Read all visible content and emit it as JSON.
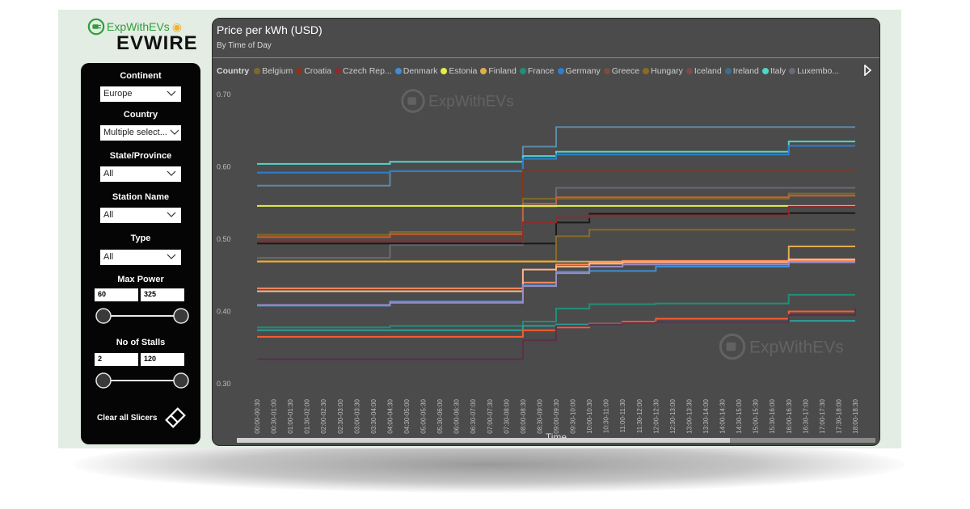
{
  "brand": {
    "name": "ExpWithEVs",
    "product": "EVWIRE",
    "icon": "plug-icon",
    "accent": "#2e9e3a",
    "hand_icon": "handshake-icon"
  },
  "slicers": {
    "continent": {
      "label": "Continent",
      "value": "Europe"
    },
    "country": {
      "label": "Country",
      "value": "Multiple select..."
    },
    "state": {
      "label": "State/Province",
      "value": "All"
    },
    "station": {
      "label": "Station Name",
      "value": "All"
    },
    "type": {
      "label": "Type",
      "value": "All"
    },
    "max_power": {
      "label": "Max Power",
      "min": "60",
      "max": "325"
    },
    "stalls": {
      "label": "No of Stalls",
      "min": "2",
      "max": "120"
    },
    "clear_label": "Clear all Slicers"
  },
  "panel": {
    "watermark": "ExpWithEVs"
  },
  "chart_data": {
    "type": "line",
    "title": "Price per kWh (USD)",
    "subtitle": "By Time of Day",
    "legend_title": "Country",
    "xlabel": "Time",
    "ylabel": "",
    "ylim": [
      0.3,
      0.7
    ],
    "yticks": [
      "0.70",
      "0.60",
      "0.50",
      "0.40",
      "0.30"
    ],
    "legend_position": "top",
    "categories": [
      "00:00-00:30",
      "00:30-01:00",
      "01:00-01:30",
      "01:30-02:00",
      "02:00-02:30",
      "02:30-03:00",
      "03:00-03:30",
      "03:30-04:00",
      "04:00-04:30",
      "04:30-05:00",
      "05:00-05:30",
      "05:30-06:00",
      "06:00-06:30",
      "06:30-07:00",
      "07:00-07:30",
      "07:30-08:00",
      "08:00-08:30",
      "08:30-09:00",
      "09:00-09:30",
      "09:30-10:00",
      "10:00-10:30",
      "10:30-11:00",
      "11:00-11:30",
      "11:30-12:00",
      "12:00-12:30",
      "12:30-13:00",
      "13:00-13:30",
      "13:30-14:00",
      "14:00-14:30",
      "14:30-15:00",
      "15:00-15:30",
      "15:30-16:00",
      "16:00-16:30",
      "16:30-17:00",
      "17:00-17:30",
      "17:30-18:00",
      "18:00-18:30"
    ],
    "legend": [
      {
        "name": "Belgium",
        "color": "#7d6a2a"
      },
      {
        "name": "Croatia",
        "color": "#8a3418"
      },
      {
        "name": "Czech Rep...",
        "color": "#8e2b2b"
      },
      {
        "name": "Denmark",
        "color": "#3f8fd8"
      },
      {
        "name": "Estonia",
        "color": "#e2ef4a"
      },
      {
        "name": "Finland",
        "color": "#e1ad4e"
      },
      {
        "name": "France",
        "color": "#1f8f78"
      },
      {
        "name": "Germany",
        "color": "#2c7fd0"
      },
      {
        "name": "Greece",
        "color": "#7a4d3a"
      },
      {
        "name": "Hungary",
        "color": "#8b6a24"
      },
      {
        "name": "Iceland",
        "color": "#7b4a4a"
      },
      {
        "name": "Ireland",
        "color": "#3a6f8c"
      },
      {
        "name": "Italy",
        "color": "#4fd6c8"
      },
      {
        "name": "Luxembo...",
        "color": "#6a6a78"
      }
    ],
    "series": [
      {
        "color": "#5d8aa8",
        "values": [
          0.574,
          0.574,
          0.574,
          0.574,
          0.574,
          0.574,
          0.574,
          0.574,
          0.594,
          0.594,
          0.594,
          0.594,
          0.594,
          0.594,
          0.594,
          0.594,
          0.628,
          0.628,
          0.655,
          0.655,
          0.655,
          0.655,
          0.655,
          0.655,
          0.655,
          0.655,
          0.655,
          0.655,
          0.655,
          0.655,
          0.655,
          0.655,
          0.655,
          0.655,
          0.655,
          0.655,
          0.655
        ]
      },
      {
        "color": "#4fd6c8",
        "values": [
          0.604,
          0.604,
          0.604,
          0.604,
          0.604,
          0.604,
          0.604,
          0.604,
          0.607,
          0.607,
          0.607,
          0.607,
          0.607,
          0.607,
          0.607,
          0.607,
          0.615,
          0.615,
          0.621,
          0.621,
          0.621,
          0.621,
          0.621,
          0.621,
          0.621,
          0.621,
          0.621,
          0.621,
          0.621,
          0.621,
          0.621,
          0.621,
          0.635,
          0.635,
          0.635,
          0.635,
          0.635
        ]
      },
      {
        "color": "#2c7fd0",
        "values": [
          0.592,
          0.592,
          0.592,
          0.592,
          0.592,
          0.592,
          0.592,
          0.592,
          0.594,
          0.594,
          0.594,
          0.594,
          0.594,
          0.594,
          0.594,
          0.594,
          0.611,
          0.611,
          0.617,
          0.617,
          0.617,
          0.617,
          0.617,
          0.617,
          0.617,
          0.617,
          0.617,
          0.617,
          0.617,
          0.617,
          0.617,
          0.617,
          0.629,
          0.629,
          0.629,
          0.629,
          0.629
        ]
      },
      {
        "color": "#8a3418",
        "values": [
          0.505,
          0.505,
          0.505,
          0.505,
          0.505,
          0.505,
          0.505,
          0.505,
          0.505,
          0.505,
          0.505,
          0.505,
          0.505,
          0.505,
          0.505,
          0.505,
          0.596,
          0.596,
          0.596,
          0.596,
          0.596,
          0.596,
          0.596,
          0.596,
          0.596,
          0.596,
          0.596,
          0.596,
          0.596,
          0.596,
          0.596,
          0.596,
          0.596,
          0.596,
          0.596,
          0.596,
          0.596
        ]
      },
      {
        "color": "#6a6a78",
        "values": [
          0.474,
          0.474,
          0.474,
          0.474,
          0.474,
          0.474,
          0.474,
          0.474,
          0.492,
          0.492,
          0.492,
          0.492,
          0.492,
          0.492,
          0.492,
          0.492,
          0.545,
          0.545,
          0.571,
          0.571,
          0.571,
          0.571,
          0.571,
          0.571,
          0.571,
          0.571,
          0.571,
          0.571,
          0.571,
          0.571,
          0.571,
          0.571,
          0.571,
          0.571,
          0.571,
          0.571,
          0.571
        ]
      },
      {
        "color": "#7d6a2a",
        "values": [
          0.506,
          0.506,
          0.506,
          0.506,
          0.506,
          0.506,
          0.506,
          0.506,
          0.51,
          0.51,
          0.51,
          0.51,
          0.51,
          0.51,
          0.51,
          0.51,
          0.556,
          0.556,
          0.556,
          0.556,
          0.556,
          0.556,
          0.556,
          0.556,
          0.556,
          0.556,
          0.556,
          0.556,
          0.556,
          0.556,
          0.556,
          0.556,
          0.563,
          0.563,
          0.563,
          0.563,
          0.563
        ]
      },
      {
        "color": "#c0623a",
        "values": [
          0.503,
          0.503,
          0.503,
          0.503,
          0.503,
          0.503,
          0.503,
          0.503,
          0.507,
          0.507,
          0.507,
          0.507,
          0.507,
          0.507,
          0.507,
          0.507,
          0.549,
          0.549,
          0.558,
          0.558,
          0.558,
          0.558,
          0.558,
          0.558,
          0.558,
          0.558,
          0.558,
          0.558,
          0.558,
          0.558,
          0.558,
          0.558,
          0.56,
          0.56,
          0.56,
          0.56,
          0.56
        ]
      },
      {
        "color": "#e2ef4a",
        "values": [
          0.546,
          0.546,
          0.546,
          0.546,
          0.546,
          0.546,
          0.546,
          0.546,
          0.546,
          0.546,
          0.546,
          0.546,
          0.546,
          0.546,
          0.546,
          0.546,
          0.546,
          0.546,
          0.546,
          0.546,
          0.546,
          0.546,
          0.546,
          0.546,
          0.546,
          0.546,
          0.546,
          0.546,
          0.546,
          0.546,
          0.546,
          0.546,
          0.546,
          0.546,
          0.546,
          0.546,
          0.546
        ]
      },
      {
        "color": "#1a1a1a",
        "values": [
          0.494,
          0.494,
          0.494,
          0.494,
          0.494,
          0.494,
          0.494,
          0.494,
          0.494,
          0.494,
          0.494,
          0.494,
          0.494,
          0.494,
          0.494,
          0.494,
          0.494,
          0.494,
          0.523,
          0.523,
          0.535,
          0.535,
          0.535,
          0.535,
          0.535,
          0.535,
          0.535,
          0.535,
          0.535,
          0.535,
          0.535,
          0.535,
          0.536,
          0.536,
          0.536,
          0.536,
          0.536
        ]
      },
      {
        "color": "#8e2b2b",
        "values": [
          0.497,
          0.497,
          0.497,
          0.497,
          0.497,
          0.497,
          0.497,
          0.497,
          0.497,
          0.497,
          0.497,
          0.497,
          0.497,
          0.497,
          0.497,
          0.497,
          0.523,
          0.523,
          0.53,
          0.53,
          0.533,
          0.533,
          0.533,
          0.533,
          0.533,
          0.533,
          0.533,
          0.533,
          0.533,
          0.533,
          0.533,
          0.533,
          0.545,
          0.545,
          0.545,
          0.545,
          0.545
        ]
      },
      {
        "color": "#8b6a24",
        "values": [
          0.47,
          0.47,
          0.47,
          0.47,
          0.47,
          0.47,
          0.47,
          0.47,
          0.47,
          0.47,
          0.47,
          0.47,
          0.47,
          0.47,
          0.47,
          0.47,
          0.47,
          0.47,
          0.504,
          0.504,
          0.513,
          0.513,
          0.513,
          0.513,
          0.513,
          0.513,
          0.513,
          0.513,
          0.513,
          0.513,
          0.513,
          0.513,
          0.513,
          0.513,
          0.513,
          0.513,
          0.513
        ]
      },
      {
        "color": "#e1ad4e",
        "values": [
          0.469,
          0.469,
          0.469,
          0.469,
          0.469,
          0.469,
          0.469,
          0.469,
          0.469,
          0.469,
          0.469,
          0.469,
          0.469,
          0.469,
          0.469,
          0.469,
          0.469,
          0.469,
          0.469,
          0.469,
          0.469,
          0.469,
          0.469,
          0.469,
          0.469,
          0.469,
          0.469,
          0.469,
          0.469,
          0.469,
          0.469,
          0.469,
          0.49,
          0.49,
          0.49,
          0.49,
          0.49
        ]
      },
      {
        "color": "#ff8a5c",
        "values": [
          0.432,
          0.432,
          0.432,
          0.432,
          0.432,
          0.432,
          0.432,
          0.432,
          0.432,
          0.432,
          0.432,
          0.432,
          0.432,
          0.432,
          0.432,
          0.432,
          0.44,
          0.44,
          0.465,
          0.465,
          0.467,
          0.467,
          0.47,
          0.47,
          0.47,
          0.47,
          0.47,
          0.47,
          0.47,
          0.47,
          0.47,
          0.47,
          0.47,
          0.47,
          0.47,
          0.47,
          0.47
        ]
      },
      {
        "color": "#ffb48a",
        "values": [
          0.428,
          0.428,
          0.428,
          0.428,
          0.428,
          0.428,
          0.428,
          0.428,
          0.428,
          0.428,
          0.428,
          0.428,
          0.428,
          0.428,
          0.428,
          0.428,
          0.458,
          0.458,
          0.462,
          0.462,
          0.466,
          0.466,
          0.468,
          0.468,
          0.468,
          0.468,
          0.468,
          0.468,
          0.468,
          0.468,
          0.468,
          0.468,
          0.472,
          0.472,
          0.472,
          0.472,
          0.472
        ]
      },
      {
        "color": "#3f8fd8",
        "values": [
          0.408,
          0.408,
          0.408,
          0.408,
          0.408,
          0.408,
          0.408,
          0.408,
          0.414,
          0.414,
          0.414,
          0.414,
          0.414,
          0.414,
          0.414,
          0.414,
          0.436,
          0.436,
          0.455,
          0.455,
          0.456,
          0.456,
          0.456,
          0.456,
          0.462,
          0.462,
          0.462,
          0.462,
          0.462,
          0.462,
          0.462,
          0.462,
          0.468,
          0.468,
          0.468,
          0.468,
          0.468
        ]
      },
      {
        "color": "#9a8cc0",
        "values": [
          0.409,
          0.409,
          0.409,
          0.409,
          0.409,
          0.409,
          0.409,
          0.409,
          0.412,
          0.412,
          0.412,
          0.412,
          0.412,
          0.412,
          0.412,
          0.412,
          0.435,
          0.435,
          0.453,
          0.453,
          0.462,
          0.462,
          0.465,
          0.465,
          0.465,
          0.465,
          0.465,
          0.465,
          0.465,
          0.465,
          0.465,
          0.465,
          0.468,
          0.468,
          0.468,
          0.468,
          0.468
        ]
      },
      {
        "color": "#1f8f78",
        "values": [
          0.378,
          0.378,
          0.378,
          0.378,
          0.378,
          0.378,
          0.378,
          0.378,
          0.38,
          0.38,
          0.38,
          0.38,
          0.38,
          0.38,
          0.38,
          0.38,
          0.386,
          0.386,
          0.404,
          0.404,
          0.41,
          0.41,
          0.41,
          0.41,
          0.411,
          0.411,
          0.411,
          0.411,
          0.411,
          0.411,
          0.411,
          0.411,
          0.423,
          0.423,
          0.423,
          0.423,
          0.423
        ]
      },
      {
        "color": "#2aa09a",
        "values": [
          0.374,
          0.374,
          0.374,
          0.374,
          0.374,
          0.374,
          0.374,
          0.374,
          0.374,
          0.374,
          0.374,
          0.374,
          0.374,
          0.374,
          0.374,
          0.374,
          0.38,
          0.38,
          0.382,
          0.382,
          0.383,
          0.383,
          0.384,
          0.384,
          0.385,
          0.385,
          0.385,
          0.385,
          0.385,
          0.385,
          0.385,
          0.385,
          0.387,
          0.387,
          0.387,
          0.387,
          0.387
        ]
      },
      {
        "color": "#ff5a2e",
        "values": [
          0.365,
          0.365,
          0.365,
          0.365,
          0.365,
          0.365,
          0.365,
          0.365,
          0.365,
          0.365,
          0.365,
          0.365,
          0.365,
          0.365,
          0.365,
          0.365,
          0.374,
          0.374,
          0.378,
          0.378,
          0.383,
          0.383,
          0.386,
          0.386,
          0.39,
          0.39,
          0.39,
          0.39,
          0.39,
          0.39,
          0.39,
          0.39,
          0.4,
          0.4,
          0.4,
          0.4,
          0.4
        ]
      },
      {
        "color": "#5a3048",
        "values": [
          0.334,
          0.334,
          0.334,
          0.334,
          0.334,
          0.334,
          0.334,
          0.334,
          0.334,
          0.334,
          0.334,
          0.334,
          0.334,
          0.334,
          0.334,
          0.334,
          0.36,
          0.36,
          0.38,
          0.38,
          0.382,
          0.382,
          0.384,
          0.384,
          0.385,
          0.385,
          0.385,
          0.385,
          0.385,
          0.385,
          0.385,
          0.385,
          0.395,
          0.395,
          0.395,
          0.395,
          0.405
        ]
      }
    ]
  }
}
